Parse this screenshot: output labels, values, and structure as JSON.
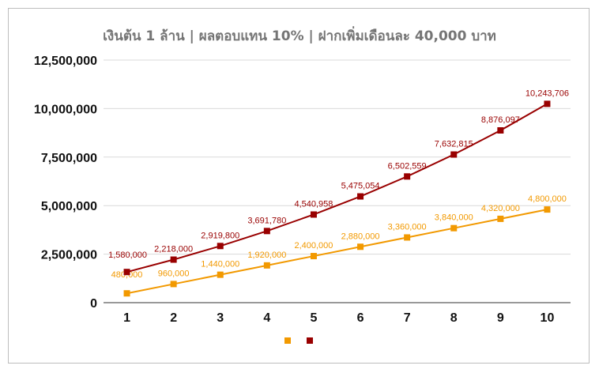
{
  "chart_data": {
    "type": "line",
    "title": "เงินต้น 1 ล้าน | ผลตอบแทน 10% | ฝากเพิ่มเดือนละ 40,000 บาท",
    "xlabel": "",
    "ylabel": "",
    "categories": [
      "1",
      "2",
      "3",
      "4",
      "5",
      "6",
      "7",
      "8",
      "9",
      "10"
    ],
    "ylim": [
      0,
      12500000
    ],
    "yticks": [
      0,
      2500000,
      5000000,
      7500000,
      10000000,
      12500000
    ],
    "ytick_labels": [
      "0",
      "2,500,000",
      "5,000,000",
      "7,500,000",
      "10,000,000",
      "12,500,000"
    ],
    "grid": true,
    "legend": "bottom",
    "series": [
      {
        "name": "",
        "color": "#f29900",
        "values": [
          480000,
          960000,
          1440000,
          1920000,
          2400000,
          2880000,
          3360000,
          3840000,
          4320000,
          4800000
        ],
        "labels": [
          "480,000",
          "960,000",
          "1,440,000",
          "1,920,000",
          "2,400,000",
          "2,880,000",
          "3,360,000",
          "3,840,000",
          "4,320,000",
          "4,800,000"
        ]
      },
      {
        "name": "",
        "color": "#990000",
        "values": [
          1580000,
          2218000,
          2919800,
          3691780,
          4540958,
          5475054,
          6502559,
          7632815,
          8876097,
          10243706
        ],
        "labels": [
          "1,580,000",
          "2,218,000",
          "2,919,800",
          "3,691,780",
          "4,540,958",
          "5,475,054",
          "6,502,559",
          "7,632,815",
          "8,876,097",
          "10,243,706"
        ]
      }
    ]
  }
}
